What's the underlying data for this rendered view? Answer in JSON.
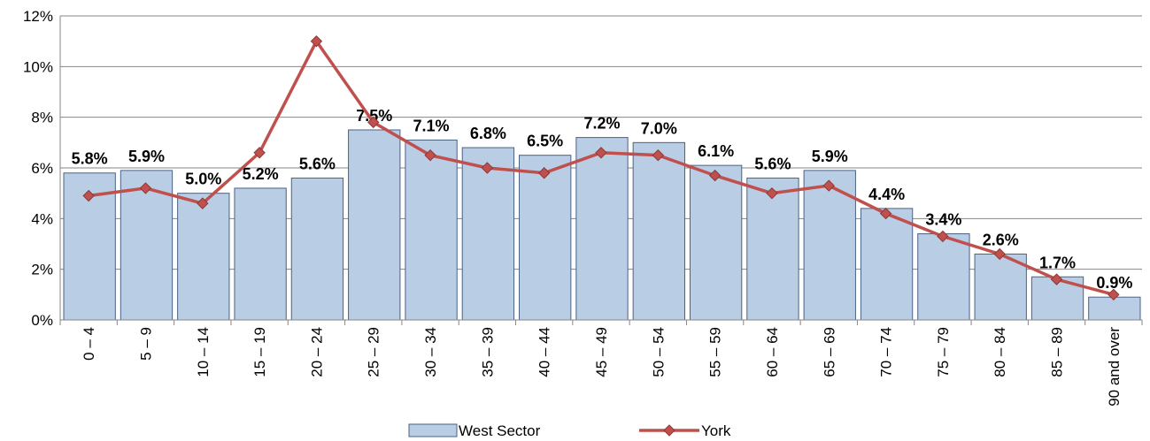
{
  "chart_data": {
    "type": "bar_line",
    "categories": [
      "0 – 4",
      "5 – 9",
      "10 – 14",
      "15 – 19",
      "20 – 24",
      "25 – 29",
      "30 – 34",
      "35 – 39",
      "40 – 44",
      "45 – 49",
      "50 – 54",
      "55 – 59",
      "60 – 64",
      "65 – 69",
      "70 – 74",
      "75 – 79",
      "80 – 84",
      "85 – 89",
      "90 and over"
    ],
    "series": [
      {
        "name": "West Sector",
        "type": "bar",
        "color": "#b9cde5",
        "values": [
          5.8,
          5.9,
          5.0,
          5.2,
          5.6,
          7.5,
          7.1,
          6.8,
          6.5,
          7.2,
          7.0,
          6.1,
          5.6,
          5.9,
          4.4,
          3.4,
          2.6,
          1.7,
          0.9
        ],
        "value_labels": [
          "5.8%",
          "5.9%",
          "5.0%",
          "5.2%",
          "5.6%",
          "7.5%",
          "7.1%",
          "6.8%",
          "6.5%",
          "7.2%",
          "7.0%",
          "6.1%",
          "5.6%",
          "5.9%",
          "4.4%",
          "3.4%",
          "2.6%",
          "1.7%",
          "0.9%"
        ]
      },
      {
        "name": "York",
        "type": "line",
        "color": "#c0504d",
        "values": [
          4.9,
          5.2,
          4.6,
          6.6,
          11.0,
          7.8,
          6.5,
          6.0,
          5.8,
          6.6,
          6.5,
          5.7,
          5.0,
          5.3,
          4.2,
          3.3,
          2.6,
          1.6,
          1.0
        ]
      }
    ],
    "ylim": [
      0,
      12
    ],
    "yticks": [
      {
        "value": 0,
        "label": "0%"
      },
      {
        "value": 2,
        "label": "2%"
      },
      {
        "value": 4,
        "label": "4%"
      },
      {
        "value": 6,
        "label": "6%"
      },
      {
        "value": 8,
        "label": "8%"
      },
      {
        "value": 10,
        "label": "10%"
      },
      {
        "value": 12,
        "label": "12%"
      }
    ],
    "grid": true,
    "legend": "bottom"
  }
}
